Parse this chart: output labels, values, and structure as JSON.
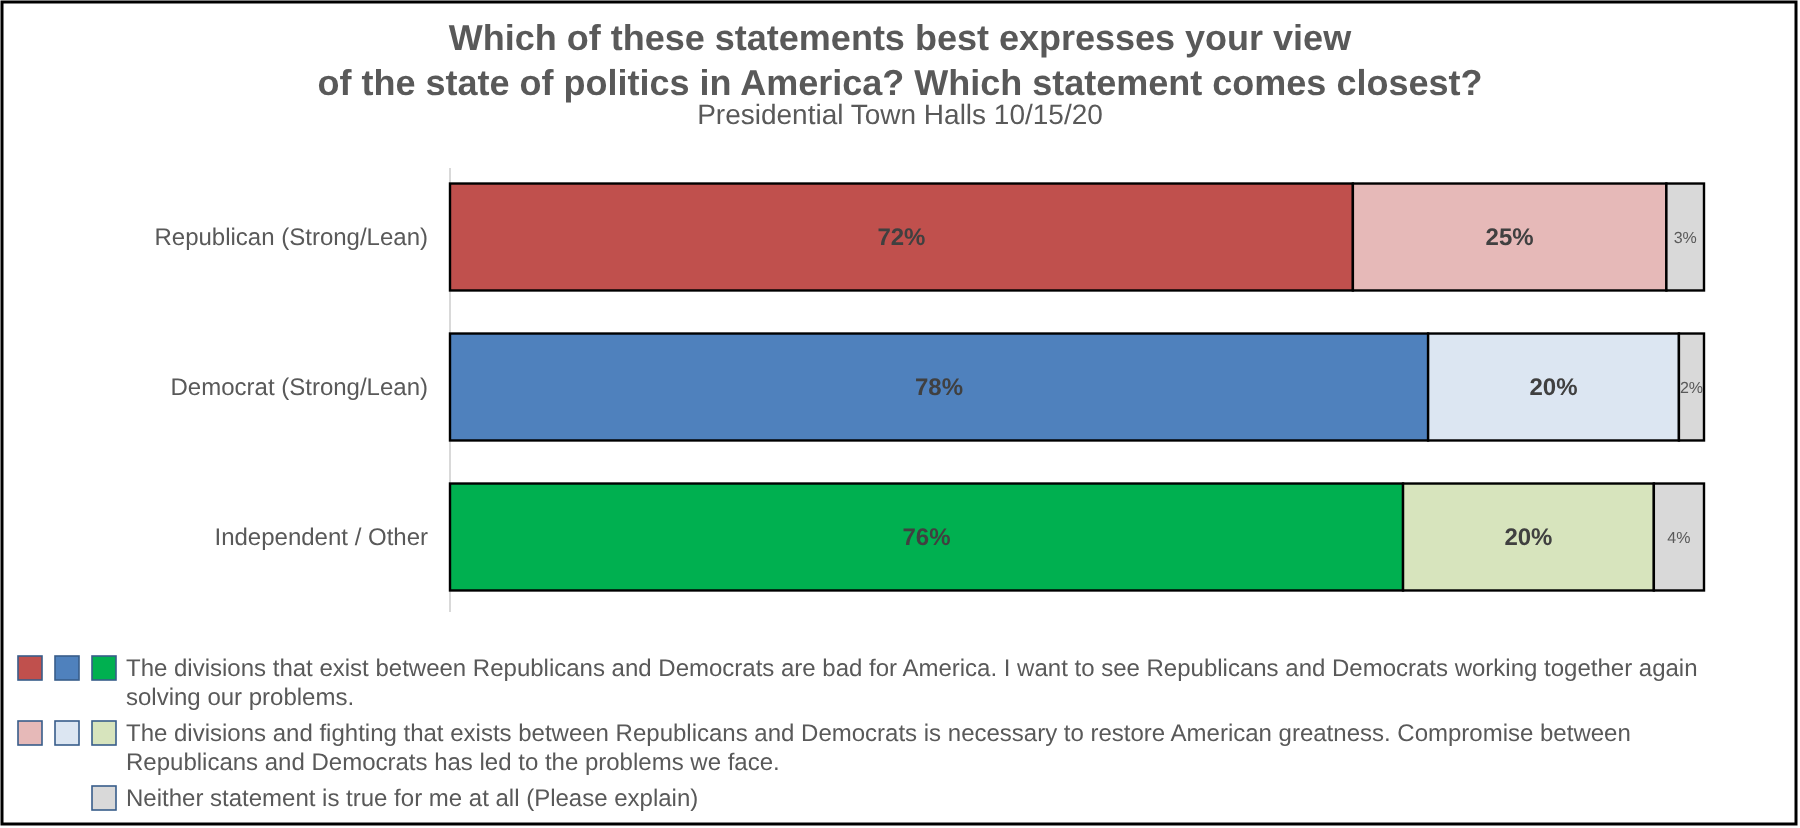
{
  "chart_data": {
    "type": "bar",
    "orientation": "horizontal",
    "stacked": true,
    "title": "Which of these statements best expresses your view\nof the state of politics in America? Which statement comes closest?",
    "subtitle": "Presidential Town Halls 10/15/20",
    "categories": [
      "Republican (Strong/Lean)",
      "Democrat (Strong/Lean)",
      "Independent / Other"
    ],
    "series": [
      {
        "name": "The divisions that exist between Republicans and Democrats are bad for America. I want to see Republicans and Democrats working together again solving our problems.",
        "colors": [
          "#c0504d",
          "#4f81bd",
          "#00b050"
        ],
        "values": [
          72,
          78,
          76
        ],
        "value_labels": [
          "72%",
          "78%",
          "76%"
        ]
      },
      {
        "name": "The divisions and fighting that exists between Republicans and Democrats is necessary to restore American greatness. Compromise between Republicans and Democrats has led to the problems we face.",
        "colors": [
          "#e6b9b8",
          "#dce6f2",
          "#d7e4bd"
        ],
        "values": [
          25,
          20,
          20
        ],
        "value_labels": [
          "25%",
          "20%",
          "20%"
        ]
      },
      {
        "name": "Neither statement is true for me at all (Please explain)",
        "color": "#d9d9d9",
        "values": [
          3,
          2,
          4
        ],
        "value_labels": [
          "3%",
          "2%",
          "4%"
        ]
      }
    ],
    "legend": "bottom"
  }
}
